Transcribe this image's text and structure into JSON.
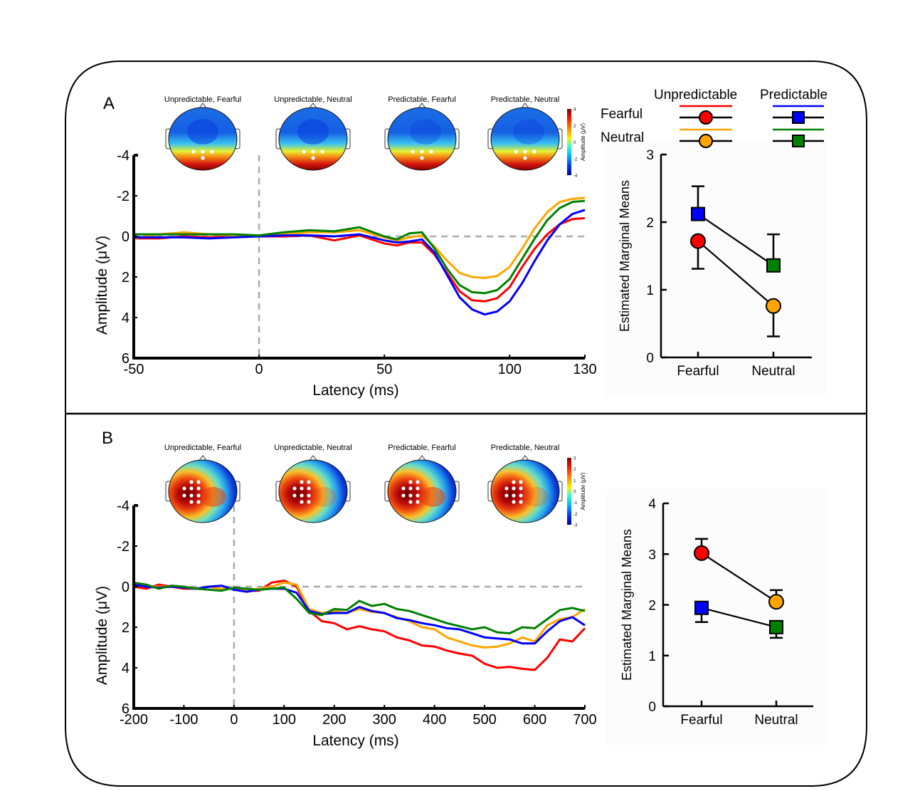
{
  "figure": {
    "panels": [
      "A",
      "B"
    ],
    "condition_colors": {
      "unpredictable_fearful": "#ff0000",
      "unpredictable_neutral": "#ffa500",
      "predictable_fearful": "#0000ff",
      "predictable_neutral": "#008000"
    }
  },
  "legend": {
    "col_headers": [
      "Unpredictable",
      "Predictable"
    ],
    "row_labels": [
      "Fearful",
      "Neutral"
    ],
    "entries": [
      {
        "group": "Unpredictable",
        "emotion": "Fearful",
        "color": "#ff0000",
        "marker": "circle"
      },
      {
        "group": "Predictable",
        "emotion": "Fearful",
        "color": "#0000ff",
        "marker": "square"
      },
      {
        "group": "Unpredictable",
        "emotion": "Neutral",
        "color": "#ffa500",
        "marker": "circle"
      },
      {
        "group": "Predictable",
        "emotion": "Neutral",
        "color": "#008000",
        "marker": "square"
      }
    ]
  },
  "chart_data": [
    {
      "panel": "A",
      "type": "line",
      "title": "",
      "xlabel": "Latency (ms)",
      "ylabel": "Amplitude (μV)",
      "xlim": [
        -50,
        130
      ],
      "ylim": [
        -4,
        6
      ],
      "y_inverted": true,
      "xticks": [
        -50,
        0,
        50,
        100,
        130
      ],
      "yticks": [
        -4,
        -2,
        0,
        2,
        4,
        6
      ],
      "reference_lines": {
        "x": 0,
        "y": 0,
        "style": "dashed"
      },
      "x": [
        -50,
        -40,
        -30,
        -20,
        -10,
        0,
        10,
        20,
        30,
        40,
        50,
        55,
        60,
        65,
        70,
        75,
        80,
        85,
        90,
        95,
        100,
        105,
        110,
        115,
        120,
        125,
        130
      ],
      "series": [
        {
          "name": "Unpredictable, Fearful",
          "color": "#ff0000",
          "values": [
            0.1,
            0.1,
            0.0,
            0.05,
            0.0,
            0.0,
            0.0,
            -0.05,
            0.2,
            -0.05,
            0.35,
            0.45,
            0.3,
            0.3,
            0.9,
            1.8,
            2.7,
            3.15,
            3.2,
            3.05,
            2.5,
            1.5,
            0.6,
            -0.1,
            -0.6,
            -0.85,
            -0.9
          ]
        },
        {
          "name": "Unpredictable, Neutral",
          "color": "#ffa500",
          "values": [
            0.1,
            -0.1,
            -0.2,
            -0.1,
            -0.05,
            0.0,
            -0.1,
            -0.2,
            -0.2,
            -0.3,
            0.05,
            0.2,
            0.05,
            -0.05,
            0.5,
            1.2,
            1.8,
            2.0,
            2.05,
            1.95,
            1.5,
            0.6,
            -0.4,
            -1.2,
            -1.7,
            -1.85,
            -1.9
          ]
        },
        {
          "name": "Predictable, Fearful",
          "color": "#0000ff",
          "values": [
            0.05,
            0.05,
            0.05,
            0.1,
            0.05,
            0.0,
            -0.05,
            -0.05,
            0.0,
            -0.1,
            0.2,
            0.3,
            0.25,
            0.15,
            0.8,
            1.9,
            3.0,
            3.6,
            3.85,
            3.7,
            3.2,
            2.3,
            1.2,
            0.2,
            -0.6,
            -1.1,
            -1.3
          ]
        },
        {
          "name": "Predictable, Neutral",
          "color": "#008000",
          "values": [
            -0.1,
            -0.1,
            -0.1,
            -0.1,
            -0.1,
            -0.05,
            -0.2,
            -0.3,
            -0.25,
            -0.45,
            0.0,
            0.15,
            -0.15,
            -0.2,
            0.6,
            1.6,
            2.4,
            2.75,
            2.8,
            2.65,
            2.1,
            1.1,
            0.1,
            -0.8,
            -1.4,
            -1.7,
            -1.75
          ]
        }
      ],
      "topomaps": {
        "titles": [
          "Unpredictable, Fearful",
          "Unpredictable, Neutral",
          "Predictable, Fearful",
          "Predictable, Neutral"
        ],
        "colorbar": {
          "label": "Amplitude (μV)",
          "ticks": [
            4,
            2,
            0,
            -2,
            -4
          ],
          "range": [
            -4,
            4
          ]
        },
        "pattern": "posterior-positive"
      }
    },
    {
      "panel": "A",
      "type": "line",
      "subtype": "interaction-plot",
      "ylabel": "Estimated Marginal Means",
      "categories": [
        "Fearful",
        "Neutral"
      ],
      "ylim": [
        0,
        3
      ],
      "yticks": [
        0,
        1,
        2,
        3
      ],
      "series": [
        {
          "name": "Unpredictable",
          "marker": "circle",
          "colors": [
            "#ff0000",
            "#ffa500"
          ],
          "values": [
            1.72,
            0.76
          ],
          "err_low": [
            1.31,
            0.31
          ],
          "err_high": null
        },
        {
          "name": "Predictable",
          "marker": "square",
          "colors": [
            "#0000ff",
            "#008000"
          ],
          "values": [
            2.12,
            1.36
          ],
          "err_low": null,
          "err_high": [
            2.53,
            1.82
          ]
        }
      ]
    },
    {
      "panel": "B",
      "type": "line",
      "title": "",
      "xlabel": "Latency (ms)",
      "ylabel": "Amplitude (μV)",
      "xlim": [
        -200,
        700
      ],
      "ylim": [
        -4,
        6
      ],
      "y_inverted": true,
      "xticks": [
        -200,
        -100,
        0,
        100,
        200,
        300,
        400,
        500,
        600,
        700
      ],
      "yticks": [
        -4,
        -2,
        0,
        2,
        4,
        6
      ],
      "reference_lines": {
        "x": 0,
        "y": 0,
        "style": "dashed"
      },
      "x": [
        -200,
        -175,
        -150,
        -125,
        -100,
        -75,
        -50,
        -25,
        0,
        25,
        50,
        75,
        100,
        125,
        150,
        175,
        200,
        225,
        250,
        275,
        300,
        325,
        350,
        375,
        400,
        425,
        450,
        475,
        500,
        525,
        550,
        575,
        600,
        625,
        650,
        675,
        700
      ],
      "series": [
        {
          "name": "Unpredictable, Fearful",
          "color": "#ff0000",
          "values": [
            0.0,
            0.1,
            -0.1,
            0.0,
            0.1,
            0.1,
            0.0,
            0.1,
            0.1,
            0.2,
            0.2,
            -0.2,
            -0.3,
            0.0,
            1.2,
            1.7,
            1.8,
            2.1,
            1.95,
            2.1,
            2.2,
            2.5,
            2.65,
            2.9,
            2.95,
            3.15,
            3.3,
            3.4,
            3.8,
            4.0,
            3.95,
            4.05,
            4.1,
            3.5,
            2.6,
            2.7,
            2.05
          ]
        },
        {
          "name": "Unpredictable, Neutral",
          "color": "#ffa500",
          "values": [
            -0.1,
            0.0,
            0.0,
            0.0,
            0.05,
            0.1,
            0.0,
            0.1,
            0.1,
            0.2,
            0.1,
            0.0,
            -0.2,
            -0.1,
            1.1,
            1.3,
            1.2,
            1.3,
            1.1,
            1.25,
            1.3,
            1.5,
            1.7,
            2.0,
            2.1,
            2.5,
            2.7,
            2.9,
            3.0,
            2.95,
            2.8,
            2.5,
            2.7,
            1.9,
            1.6,
            1.5,
            1.1
          ]
        },
        {
          "name": "Predictable, Fearful",
          "color": "#0000ff",
          "values": [
            -0.1,
            0.0,
            0.05,
            0.0,
            0.05,
            0.1,
            0.0,
            -0.05,
            0.15,
            0.25,
            0.15,
            0.1,
            0.1,
            0.3,
            1.2,
            1.35,
            1.3,
            1.3,
            1.0,
            1.2,
            1.3,
            1.55,
            1.65,
            1.8,
            1.9,
            2.05,
            2.1,
            2.3,
            2.5,
            2.55,
            2.6,
            2.8,
            2.8,
            2.2,
            1.7,
            1.5,
            1.9
          ]
        },
        {
          "name": "Predictable, Neutral",
          "color": "#008000",
          "values": [
            -0.2,
            -0.1,
            0.1,
            -0.05,
            0.0,
            0.1,
            0.15,
            0.2,
            0.05,
            0.1,
            0.15,
            0.1,
            0.05,
            0.6,
            1.3,
            1.4,
            1.1,
            1.15,
            0.7,
            0.95,
            0.85,
            1.1,
            1.2,
            1.4,
            1.6,
            1.8,
            1.95,
            2.1,
            2.0,
            2.25,
            2.3,
            2.0,
            2.05,
            1.6,
            1.15,
            1.05,
            1.2
          ]
        }
      ],
      "topomaps": {
        "titles": [
          "Unpredictable, Fearful",
          "Unpredictable, Neutral",
          "Predictable, Fearful",
          "Predictable, Neutral"
        ],
        "colorbar": {
          "label": "Amplitude (μV)",
          "ticks": [
            3,
            2,
            1,
            0,
            -1,
            -2,
            -3
          ],
          "range": [
            -3,
            3
          ]
        },
        "pattern": "left-lateral-positive"
      }
    },
    {
      "panel": "B",
      "type": "line",
      "subtype": "interaction-plot",
      "ylabel": "Estimated Marginal Means",
      "categories": [
        "Fearful",
        "Neutral"
      ],
      "ylim": [
        0,
        4
      ],
      "yticks": [
        0,
        1,
        2,
        3,
        4
      ],
      "series": [
        {
          "name": "Unpredictable",
          "marker": "circle",
          "colors": [
            "#ff0000",
            "#ffa500"
          ],
          "values": [
            3.02,
            2.06
          ],
          "err_low": null,
          "err_high": [
            3.3,
            2.29
          ]
        },
        {
          "name": "Predictable",
          "marker": "square",
          "colors": [
            "#0000ff",
            "#008000"
          ],
          "values": [
            1.94,
            1.56
          ],
          "err_low": [
            1.66,
            1.35
          ],
          "err_high": null
        }
      ]
    }
  ]
}
